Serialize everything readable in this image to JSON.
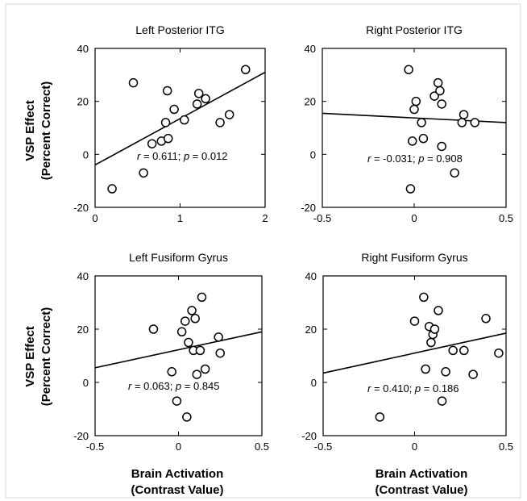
{
  "ylabel": {
    "line1": "VSP Effect",
    "line2": "(Percent Correct)"
  },
  "xlabel": {
    "line1": "Brain Activation",
    "line2": "(Contrast Value)"
  },
  "chart_data": [
    {
      "type": "scatter",
      "title": "Left  Posterior ITG",
      "xlim": [
        0,
        2
      ],
      "ylim": [
        -20,
        40
      ],
      "xticks": [
        "0",
        "1",
        "2"
      ],
      "yticks": [
        "-20",
        "0",
        "20",
        "40"
      ],
      "stat": {
        "r": "0.611",
        "p": "0.012"
      },
      "fit_line": {
        "x": [
          0,
          2
        ],
        "y": [
          -4,
          31
        ]
      },
      "points": [
        {
          "x": 0.2,
          "y": -13
        },
        {
          "x": 0.45,
          "y": 27
        },
        {
          "x": 0.57,
          "y": -7
        },
        {
          "x": 0.67,
          "y": 4
        },
        {
          "x": 0.78,
          "y": 5
        },
        {
          "x": 0.83,
          "y": 12
        },
        {
          "x": 0.85,
          "y": 24
        },
        {
          "x": 0.86,
          "y": 6
        },
        {
          "x": 0.93,
          "y": 17
        },
        {
          "x": 1.05,
          "y": 13
        },
        {
          "x": 1.2,
          "y": 19
        },
        {
          "x": 1.22,
          "y": 23
        },
        {
          "x": 1.3,
          "y": 21
        },
        {
          "x": 1.47,
          "y": 12
        },
        {
          "x": 1.58,
          "y": 15
        },
        {
          "x": 1.77,
          "y": 32
        }
      ]
    },
    {
      "type": "scatter",
      "title": "Right Posterior ITG",
      "xlim": [
        -0.5,
        0.5
      ],
      "ylim": [
        -20,
        40
      ],
      "xticks": [
        "-0.5",
        "0",
        "0.5"
      ],
      "yticks": [
        "-20",
        "0",
        "20",
        "40"
      ],
      "stat": {
        "r": "-0.031",
        "p": "0.908"
      },
      "fit_line": {
        "x": [
          -0.5,
          0.5
        ],
        "y": [
          15.5,
          12
        ]
      },
      "points": [
        {
          "x": -0.03,
          "y": 32
        },
        {
          "x": -0.02,
          "y": -13
        },
        {
          "x": -0.01,
          "y": 5
        },
        {
          "x": 0.0,
          "y": 17
        },
        {
          "x": 0.01,
          "y": 20
        },
        {
          "x": 0.04,
          "y": 12
        },
        {
          "x": 0.05,
          "y": 6
        },
        {
          "x": 0.11,
          "y": 22
        },
        {
          "x": 0.13,
          "y": 27
        },
        {
          "x": 0.14,
          "y": 24
        },
        {
          "x": 0.15,
          "y": 19
        },
        {
          "x": 0.15,
          "y": 3
        },
        {
          "x": 0.22,
          "y": -7
        },
        {
          "x": 0.26,
          "y": 12
        },
        {
          "x": 0.27,
          "y": 15
        },
        {
          "x": 0.33,
          "y": 12
        }
      ]
    },
    {
      "type": "scatter",
      "title": "Left Fusiform Gyrus",
      "xlim": [
        -0.5,
        0.5
      ],
      "ylim": [
        -20,
        40
      ],
      "xticks": [
        "-0.5",
        "0",
        "0.5"
      ],
      "yticks": [
        "-20",
        "0",
        "20",
        "40"
      ],
      "stat": {
        "r": "0.063",
        "p": "0.845"
      },
      "fit_line": {
        "x": [
          -0.5,
          0.5
        ],
        "y": [
          5.5,
          19
        ]
      },
      "points": [
        {
          "x": -0.15,
          "y": 20
        },
        {
          "x": -0.04,
          "y": 4
        },
        {
          "x": -0.01,
          "y": -7
        },
        {
          "x": 0.02,
          "y": 19
        },
        {
          "x": 0.04,
          "y": 23
        },
        {
          "x": 0.05,
          "y": -13
        },
        {
          "x": 0.06,
          "y": 15
        },
        {
          "x": 0.08,
          "y": 27
        },
        {
          "x": 0.09,
          "y": 12
        },
        {
          "x": 0.1,
          "y": 24
        },
        {
          "x": 0.11,
          "y": 3
        },
        {
          "x": 0.13,
          "y": 12
        },
        {
          "x": 0.14,
          "y": 32
        },
        {
          "x": 0.16,
          "y": 5
        },
        {
          "x": 0.24,
          "y": 17
        },
        {
          "x": 0.25,
          "y": 11
        }
      ]
    },
    {
      "type": "scatter",
      "title": "Right Fusiform Gyrus",
      "xlim": [
        -0.5,
        0.5
      ],
      "ylim": [
        -20,
        40
      ],
      "xticks": [
        "-0.5",
        "0",
        "0.5"
      ],
      "yticks": [
        "-20",
        "0",
        "20",
        "40"
      ],
      "stat": {
        "r": "0.410",
        "p": "0.186"
      },
      "fit_line": {
        "x": [
          -0.5,
          0.5
        ],
        "y": [
          3.5,
          18.5
        ]
      },
      "points": [
        {
          "x": -0.19,
          "y": -13
        },
        {
          "x": 0.0,
          "y": 23
        },
        {
          "x": 0.05,
          "y": 32
        },
        {
          "x": 0.06,
          "y": 5
        },
        {
          "x": 0.08,
          "y": 21
        },
        {
          "x": 0.09,
          "y": 15
        },
        {
          "x": 0.1,
          "y": 18
        },
        {
          "x": 0.11,
          "y": 20
        },
        {
          "x": 0.13,
          "y": 27
        },
        {
          "x": 0.15,
          "y": -7
        },
        {
          "x": 0.17,
          "y": 4
        },
        {
          "x": 0.21,
          "y": 12
        },
        {
          "x": 0.27,
          "y": 12
        },
        {
          "x": 0.32,
          "y": 3
        },
        {
          "x": 0.39,
          "y": 24
        },
        {
          "x": 0.46,
          "y": 11
        }
      ]
    }
  ]
}
